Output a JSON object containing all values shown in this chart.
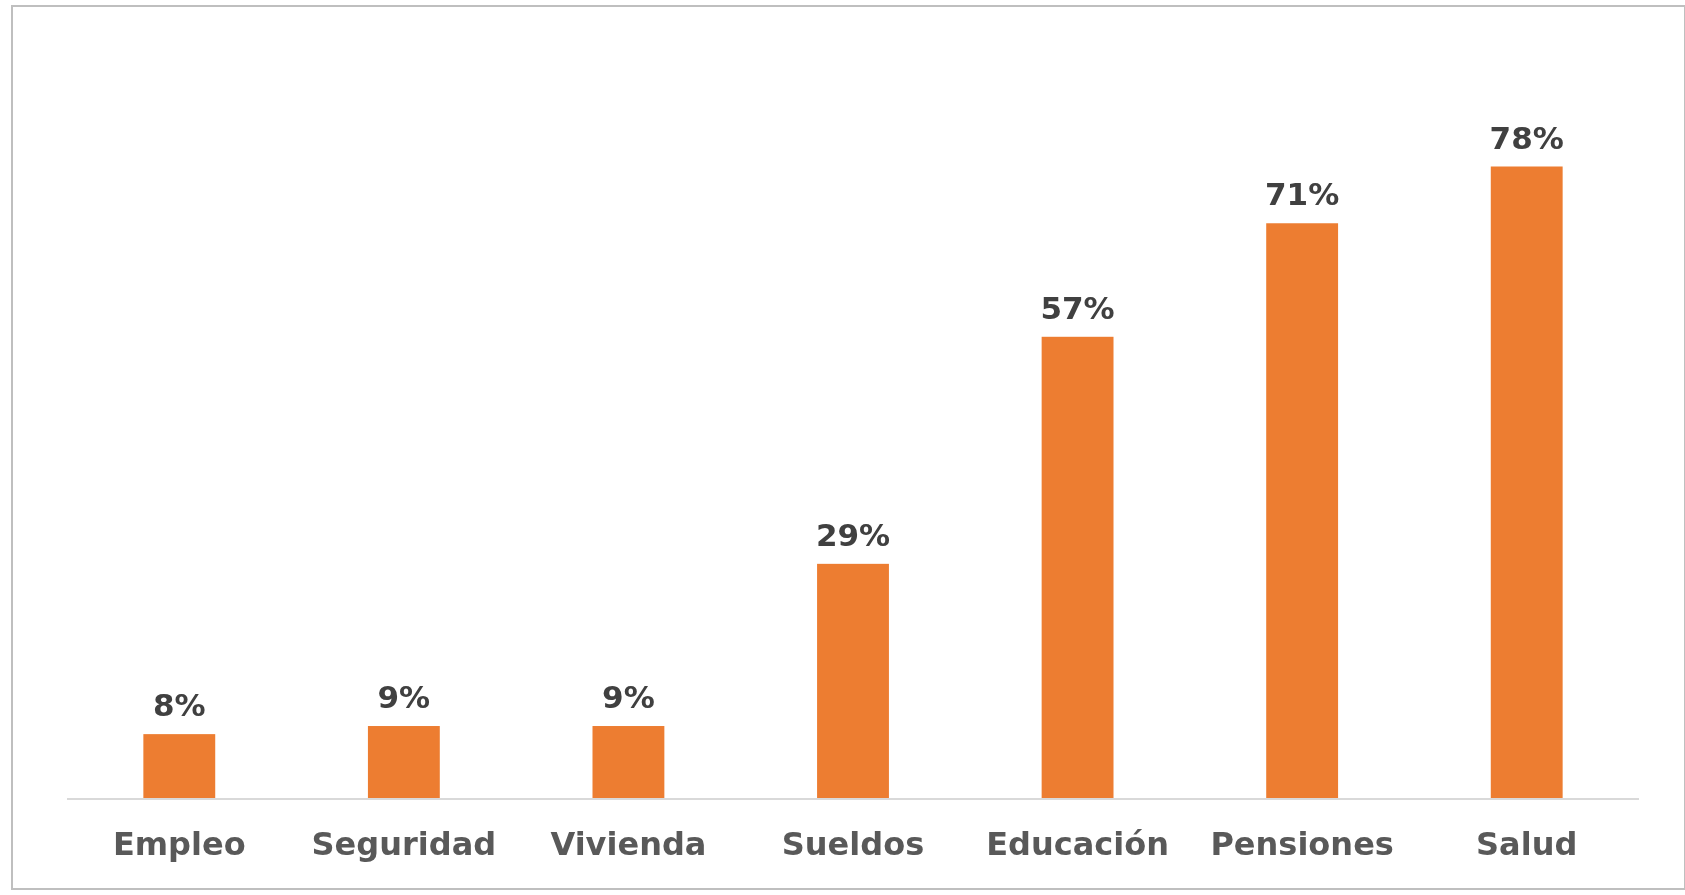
{
  "chart_data": {
    "type": "bar",
    "categories": [
      "Empleo",
      "Seguridad",
      "Vivienda",
      "Sueldos",
      "Educación",
      "Pensiones",
      "Salud"
    ],
    "values": [
      8,
      9,
      9,
      29,
      57,
      71,
      78
    ],
    "value_labels": [
      "8%",
      "9%",
      "9%",
      "29%",
      "57%",
      "71%",
      "78%"
    ],
    "color": "#ed7d31"
  }
}
